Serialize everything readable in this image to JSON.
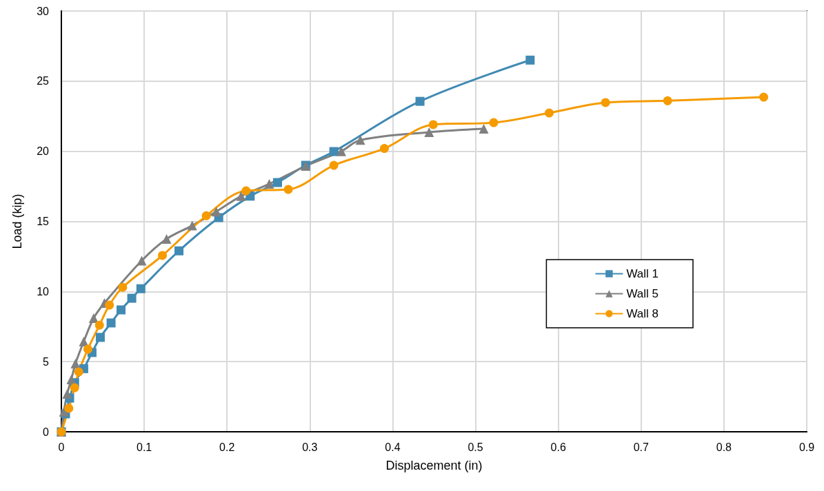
{
  "chart_data": {
    "type": "line",
    "xlabel": "Displacement (in)",
    "ylabel": "Load (kip)",
    "xlim": [
      0,
      0.9
    ],
    "xticks": [
      0,
      0.1,
      0.2,
      0.3,
      0.4,
      0.5,
      0.6,
      0.7,
      0.8,
      0.9
    ],
    "ylim": [
      0,
      30
    ],
    "yticks": [
      0,
      5,
      10,
      15,
      20,
      25,
      30
    ],
    "grid": true,
    "legend": "right",
    "line_style": "solid",
    "series": [
      {
        "name": "Wall 1",
        "color": "#418ab3",
        "marker": "square",
        "x": [
          0,
          0.005,
          0.01,
          0.016,
          0.027,
          0.037,
          0.047,
          0.06,
          0.072,
          0.085,
          0.096,
          0.142,
          0.19,
          0.228,
          0.261,
          0.295,
          0.329,
          0.433,
          0.566
        ],
        "values": [
          0,
          1.28,
          2.4,
          3.5,
          4.5,
          5.65,
          6.73,
          7.76,
          8.69,
          9.52,
          10.2,
          12.9,
          15.27,
          16.8,
          17.77,
          19.0,
          19.98,
          23.56,
          26.5
        ]
      },
      {
        "name": "Wall 5",
        "color": "#808080",
        "marker": "triangle",
        "x": [
          0,
          0.003,
          0.007,
          0.012,
          0.017,
          0.027,
          0.039,
          0.052,
          0.097,
          0.127,
          0.158,
          0.187,
          0.217,
          0.251,
          0.295,
          0.338,
          0.361,
          0.444,
          0.51
        ],
        "values": [
          0,
          1.42,
          2.7,
          3.73,
          4.86,
          6.43,
          8.1,
          9.18,
          12.2,
          13.75,
          14.7,
          15.7,
          16.8,
          17.67,
          18.95,
          20.0,
          20.8,
          21.36,
          21.6
        ]
      },
      {
        "name": "Wall 8",
        "color": "#f59b00",
        "marker": "circle",
        "x": [
          0,
          0.009,
          0.016,
          0.021,
          0.032,
          0.046,
          0.058,
          0.074,
          0.122,
          0.175,
          0.223,
          0.274,
          0.329,
          0.39,
          0.449,
          0.522,
          0.589,
          0.657,
          0.732,
          0.848
        ],
        "values": [
          0,
          1.67,
          3.14,
          4.27,
          5.89,
          7.6,
          9.03,
          10.3,
          12.57,
          15.4,
          17.18,
          17.28,
          19.0,
          20.2,
          21.9,
          22.04,
          22.73,
          23.47,
          23.6,
          23.86
        ]
      }
    ]
  }
}
